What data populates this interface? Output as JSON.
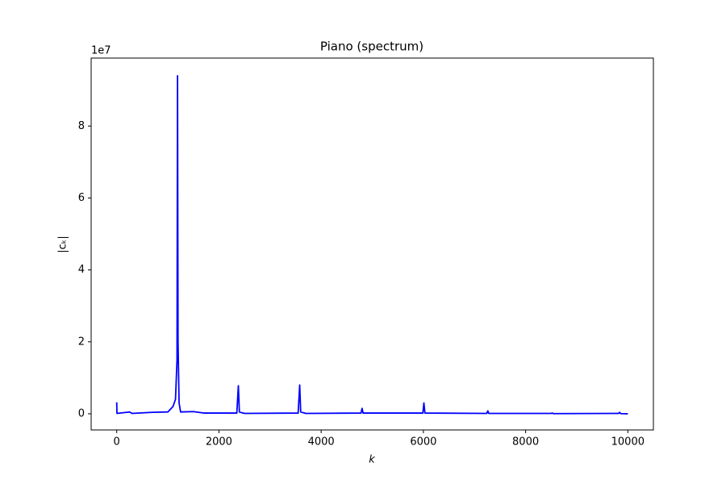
{
  "chart_data": {
    "type": "line",
    "title": "Piano (spectrum)",
    "xlabel": "k",
    "ylabel": "|cₖ|",
    "y_offset_label": "1e7",
    "x": [
      0,
      5,
      250,
      300,
      700,
      1000,
      1100,
      1150,
      1180,
      1190,
      1200,
      1220,
      1250,
      1500,
      1700,
      2350,
      2380,
      2400,
      2500,
      3550,
      3580,
      3600,
      3700,
      4780,
      4800,
      4820,
      5990,
      6010,
      6030,
      7240,
      7260,
      7280,
      8500,
      8520,
      8540,
      9820,
      9840,
      9860,
      10000
    ],
    "series": [
      {
        "color": "#0000ff",
        "values": [
          0.32,
          0.01,
          0.05,
          0.01,
          0.04,
          0.05,
          0.2,
          0.4,
          1.5,
          9.4,
          2,
          0.3,
          0.05,
          0.06,
          0.02,
          0.02,
          0.78,
          0.05,
          0.01,
          0.02,
          0.8,
          0.05,
          0.01,
          0.02,
          0.15,
          0.02,
          0.02,
          0.3,
          0.02,
          0.01,
          0.08,
          0.01,
          0.01,
          0.02,
          0.005,
          0.01,
          0.04,
          0.005,
          0
        ]
      }
    ],
    "xlim": [
      -500,
      10500
    ],
    "ylim": [
      -0.45,
      9.89
    ],
    "xticks": [
      0,
      2000,
      4000,
      6000,
      8000,
      10000
    ],
    "yticks": [
      0,
      2,
      4,
      6,
      8
    ]
  }
}
